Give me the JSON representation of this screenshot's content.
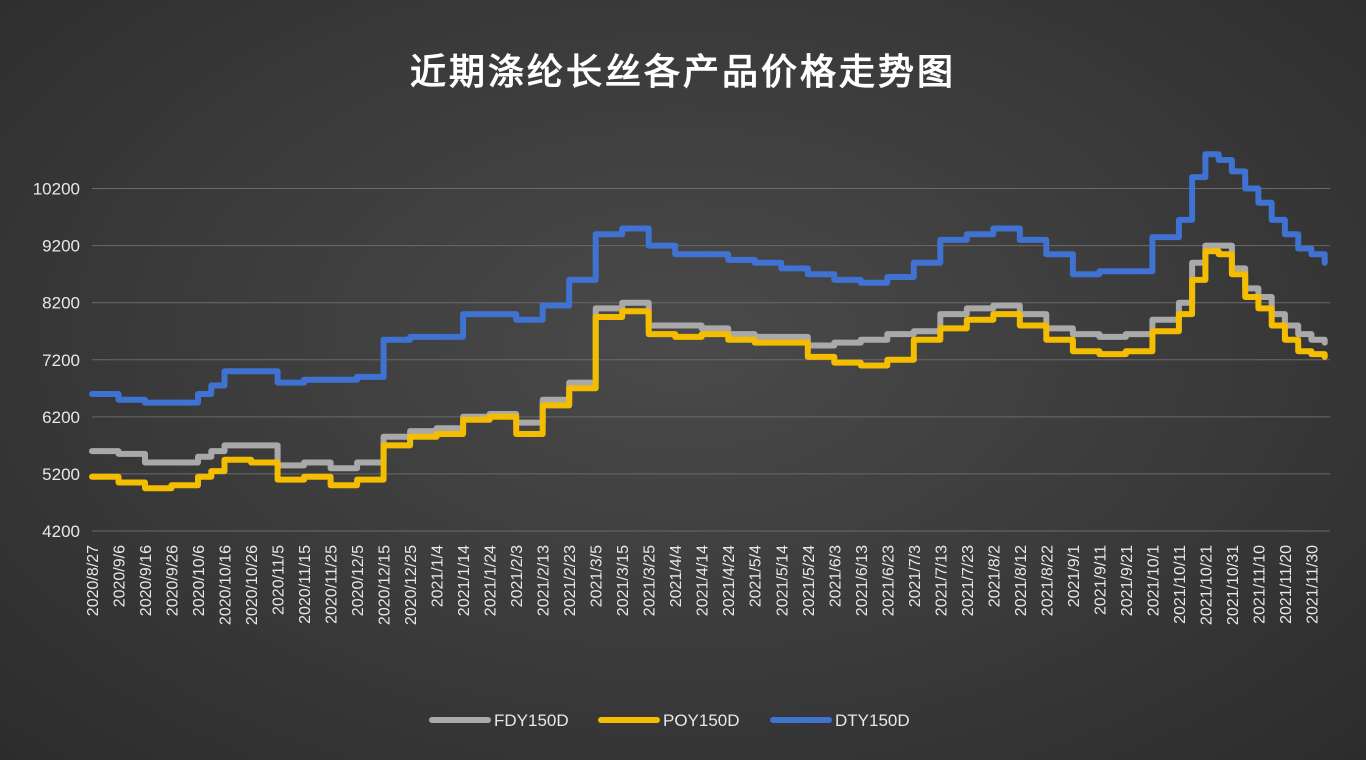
{
  "chart_data": {
    "type": "line",
    "title": "近期涤纶长丝各产品价格走势图",
    "xlabel": "",
    "ylabel": "",
    "ylim": [
      4200,
      10700
    ],
    "yticks": [
      4200,
      5200,
      6200,
      7200,
      8200,
      9200,
      10200
    ],
    "grid": true,
    "legend": "bottom",
    "x_start": "2020/8/27",
    "x_end": "2021/12/7",
    "x_tick_labels": [
      "2020/8/27",
      "2020/9/6",
      "2020/9/16",
      "2020/9/26",
      "2020/10/6",
      "2020/10/16",
      "2020/10/26",
      "2020/11/5",
      "2020/11/15",
      "2020/11/25",
      "2020/12/5",
      "2020/12/15",
      "2020/12/25",
      "2021/1/4",
      "2021/1/14",
      "2021/1/24",
      "2021/2/3",
      "2021/2/13",
      "2021/2/23",
      "2021/3/5",
      "2021/3/15",
      "2021/3/25",
      "2021/4/4",
      "2021/4/14",
      "2021/4/24",
      "2021/5/4",
      "2021/5/14",
      "2021/5/24",
      "2021/6/3",
      "2021/6/13",
      "2021/6/23",
      "2021/7/3",
      "2021/7/13",
      "2021/7/23",
      "2021/8/2",
      "2021/8/12",
      "2021/8/22",
      "2021/9/1",
      "2021/9/11",
      "2021/9/21",
      "2021/10/1",
      "2021/10/11",
      "2021/10/21",
      "2021/10/31",
      "2021/11/10",
      "2021/11/20",
      "2021/11/30"
    ],
    "x": [
      "2020/8/27",
      "2020/9/6",
      "2020/9/16",
      "2020/9/26",
      "2020/10/6",
      "2020/10/11",
      "2020/10/16",
      "2020/10/26",
      "2020/11/5",
      "2020/11/15",
      "2020/11/25",
      "2020/12/5",
      "2020/12/15",
      "2020/12/25",
      "2021/1/4",
      "2021/1/14",
      "2021/1/24",
      "2021/2/3",
      "2021/2/13",
      "2021/2/23",
      "2021/3/5",
      "2021/3/15",
      "2021/3/25",
      "2021/4/4",
      "2021/4/14",
      "2021/4/24",
      "2021/5/4",
      "2021/5/14",
      "2021/5/24",
      "2021/6/3",
      "2021/6/13",
      "2021/6/23",
      "2021/7/3",
      "2021/7/13",
      "2021/7/23",
      "2021/8/2",
      "2021/8/12",
      "2021/8/22",
      "2021/9/1",
      "2021/9/11",
      "2021/9/21",
      "2021/10/1",
      "2021/10/11",
      "2021/10/16",
      "2021/10/21",
      "2021/10/26",
      "2021/10/31",
      "2021/11/5",
      "2021/11/10",
      "2021/11/15",
      "2021/11/20",
      "2021/11/25",
      "2021/11/30",
      "2021/12/5"
    ],
    "series": [
      {
        "name": "DTY150D",
        "color": "#3f72d1",
        "values": [
          6600,
          6500,
          6450,
          6450,
          6600,
          6750,
          7000,
          7000,
          6800,
          6850,
          6850,
          6900,
          7550,
          7600,
          7600,
          8000,
          8000,
          7900,
          8150,
          8600,
          9400,
          9500,
          9200,
          9050,
          9050,
          8950,
          8900,
          8800,
          8700,
          8600,
          8550,
          8650,
          8900,
          9300,
          9400,
          9500,
          9300,
          9050,
          8700,
          8750,
          8750,
          9350,
          9650,
          10400,
          10800,
          10700,
          10500,
          10200,
          9950,
          9650,
          9400,
          9150,
          9050,
          8900
        ]
      },
      {
        "name": "FDY150D",
        "color": "#a9a9a9",
        "values": [
          5600,
          5550,
          5400,
          5400,
          5500,
          5600,
          5700,
          5700,
          5350,
          5400,
          5300,
          5400,
          5850,
          5950,
          6000,
          6200,
          6250,
          6100,
          6500,
          6800,
          8100,
          8200,
          7800,
          7800,
          7750,
          7650,
          7600,
          7600,
          7450,
          7500,
          7550,
          7650,
          7700,
          8000,
          8100,
          8150,
          8000,
          7750,
          7650,
          7600,
          7650,
          7900,
          8200,
          8900,
          9200,
          9200,
          8800,
          8450,
          8300,
          8000,
          7800,
          7650,
          7550,
          7500
        ]
      },
      {
        "name": "POY150D",
        "color": "#f5bd00",
        "values": [
          5150,
          5050,
          4950,
          5000,
          5150,
          5250,
          5450,
          5400,
          5100,
          5150,
          5000,
          5100,
          5700,
          5850,
          5900,
          6150,
          6200,
          5900,
          6400,
          6700,
          7950,
          8050,
          7650,
          7600,
          7650,
          7550,
          7500,
          7500,
          7250,
          7150,
          7100,
          7200,
          7550,
          7750,
          7900,
          8000,
          7800,
          7550,
          7350,
          7300,
          7350,
          7700,
          8000,
          8600,
          9100,
          9050,
          8700,
          8300,
          8100,
          7800,
          7550,
          7350,
          7300,
          7250
        ]
      }
    ]
  }
}
